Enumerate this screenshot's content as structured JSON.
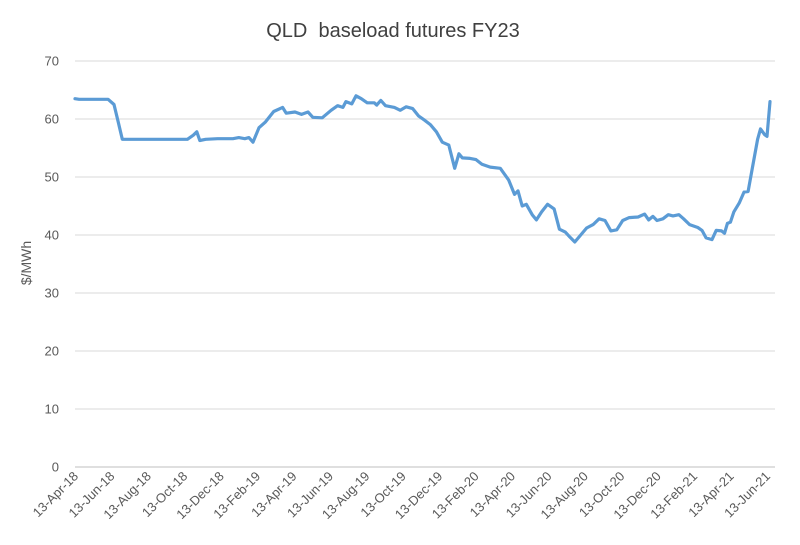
{
  "chart_data": {
    "type": "line",
    "title": "QLD  baseload futures FY23",
    "xlabel": "",
    "ylabel": "$/MWh",
    "ylim": [
      0,
      70
    ],
    "yticks": [
      0,
      10,
      20,
      30,
      40,
      50,
      60,
      70
    ],
    "grid": true,
    "legend": "none",
    "line_color": "#5b9bd5",
    "x_tick_labels": [
      "13-Apr-18",
      "13-Jun-18",
      "13-Aug-18",
      "13-Oct-18",
      "13-Dec-18",
      "13-Feb-19",
      "13-Apr-19",
      "13-Jun-19",
      "13-Aug-19",
      "13-Oct-19",
      "13-Dec-19",
      "13-Feb-20",
      "13-Apr-20",
      "13-Jun-20",
      "13-Aug-20",
      "13-Oct-20",
      "13-Dec-20",
      "13-Feb-21",
      "13-Apr-21",
      "13-Jun-21"
    ],
    "series": [
      {
        "values": [
          {
            "x": "2018-04-13",
            "y": 63.5
          },
          {
            "x": "2018-04-20",
            "y": 63.4
          },
          {
            "x": "2018-05-10",
            "y": 63.4
          },
          {
            "x": "2018-06-08",
            "y": 63.4
          },
          {
            "x": "2018-06-18",
            "y": 62.5
          },
          {
            "x": "2018-06-25",
            "y": 59.5
          },
          {
            "x": "2018-07-02",
            "y": 56.5
          },
          {
            "x": "2018-07-20",
            "y": 56.5
          },
          {
            "x": "2018-08-20",
            "y": 56.5
          },
          {
            "x": "2018-09-20",
            "y": 56.5
          },
          {
            "x": "2018-10-20",
            "y": 56.5
          },
          {
            "x": "2018-10-30",
            "y": 57.2
          },
          {
            "x": "2018-11-05",
            "y": 57.8
          },
          {
            "x": "2018-11-10",
            "y": 56.3
          },
          {
            "x": "2018-11-20",
            "y": 56.5
          },
          {
            "x": "2018-12-10",
            "y": 56.6
          },
          {
            "x": "2019-01-05",
            "y": 56.6
          },
          {
            "x": "2019-01-15",
            "y": 56.8
          },
          {
            "x": "2019-01-25",
            "y": 56.6
          },
          {
            "x": "2019-02-01",
            "y": 56.8
          },
          {
            "x": "2019-02-08",
            "y": 56.0
          },
          {
            "x": "2019-02-18",
            "y": 58.5
          },
          {
            "x": "2019-03-01",
            "y": 59.5
          },
          {
            "x": "2019-03-15",
            "y": 61.3
          },
          {
            "x": "2019-03-30",
            "y": 62.0
          },
          {
            "x": "2019-04-05",
            "y": 61.0
          },
          {
            "x": "2019-04-20",
            "y": 61.2
          },
          {
            "x": "2019-05-01",
            "y": 60.8
          },
          {
            "x": "2019-05-12",
            "y": 61.2
          },
          {
            "x": "2019-05-20",
            "y": 60.3
          },
          {
            "x": "2019-06-05",
            "y": 60.2
          },
          {
            "x": "2019-06-20",
            "y": 61.5
          },
          {
            "x": "2019-07-01",
            "y": 62.3
          },
          {
            "x": "2019-07-10",
            "y": 62.0
          },
          {
            "x": "2019-07-15",
            "y": 63.0
          },
          {
            "x": "2019-07-25",
            "y": 62.6
          },
          {
            "x": "2019-08-01",
            "y": 64.0
          },
          {
            "x": "2019-08-10",
            "y": 63.5
          },
          {
            "x": "2019-08-20",
            "y": 62.8
          },
          {
            "x": "2019-09-01",
            "y": 62.8
          },
          {
            "x": "2019-09-05",
            "y": 62.4
          },
          {
            "x": "2019-09-12",
            "y": 63.2
          },
          {
            "x": "2019-09-20",
            "y": 62.3
          },
          {
            "x": "2019-10-05",
            "y": 62.0
          },
          {
            "x": "2019-10-15",
            "y": 61.5
          },
          {
            "x": "2019-10-25",
            "y": 62.1
          },
          {
            "x": "2019-11-05",
            "y": 61.8
          },
          {
            "x": "2019-11-15",
            "y": 60.5
          },
          {
            "x": "2019-11-25",
            "y": 59.8
          },
          {
            "x": "2019-12-05",
            "y": 59.0
          },
          {
            "x": "2019-12-15",
            "y": 57.8
          },
          {
            "x": "2019-12-25",
            "y": 56.0
          },
          {
            "x": "2020-01-05",
            "y": 55.5
          },
          {
            "x": "2020-01-15",
            "y": 51.5
          },
          {
            "x": "2020-01-22",
            "y": 54.0
          },
          {
            "x": "2020-01-28",
            "y": 53.3
          },
          {
            "x": "2020-02-10",
            "y": 53.2
          },
          {
            "x": "2020-02-20",
            "y": 53.0
          },
          {
            "x": "2020-03-01",
            "y": 52.2
          },
          {
            "x": "2020-03-15",
            "y": 51.7
          },
          {
            "x": "2020-04-01",
            "y": 51.5
          },
          {
            "x": "2020-04-15",
            "y": 49.5
          },
          {
            "x": "2020-04-25",
            "y": 47.0
          },
          {
            "x": "2020-05-01",
            "y": 47.6
          },
          {
            "x": "2020-05-08",
            "y": 45.0
          },
          {
            "x": "2020-05-15",
            "y": 45.3
          },
          {
            "x": "2020-05-25",
            "y": 43.5
          },
          {
            "x": "2020-06-01",
            "y": 42.6
          },
          {
            "x": "2020-06-10",
            "y": 44.0
          },
          {
            "x": "2020-06-20",
            "y": 45.3
          },
          {
            "x": "2020-07-01",
            "y": 44.5
          },
          {
            "x": "2020-07-10",
            "y": 41.0
          },
          {
            "x": "2020-07-20",
            "y": 40.5
          },
          {
            "x": "2020-07-28",
            "y": 39.6
          },
          {
            "x": "2020-08-05",
            "y": 38.8
          },
          {
            "x": "2020-08-15",
            "y": 40.0
          },
          {
            "x": "2020-08-25",
            "y": 41.2
          },
          {
            "x": "2020-09-05",
            "y": 41.8
          },
          {
            "x": "2020-09-15",
            "y": 42.8
          },
          {
            "x": "2020-09-25",
            "y": 42.5
          },
          {
            "x": "2020-10-05",
            "y": 40.7
          },
          {
            "x": "2020-10-15",
            "y": 40.9
          },
          {
            "x": "2020-10-25",
            "y": 42.5
          },
          {
            "x": "2020-11-05",
            "y": 43.0
          },
          {
            "x": "2020-11-20",
            "y": 43.1
          },
          {
            "x": "2020-12-01",
            "y": 43.6
          },
          {
            "x": "2020-12-08",
            "y": 42.6
          },
          {
            "x": "2020-12-15",
            "y": 43.2
          },
          {
            "x": "2020-12-22",
            "y": 42.5
          },
          {
            "x": "2021-01-01",
            "y": 42.8
          },
          {
            "x": "2021-01-10",
            "y": 43.5
          },
          {
            "x": "2021-01-18",
            "y": 43.3
          },
          {
            "x": "2021-01-28",
            "y": 43.5
          },
          {
            "x": "2021-02-05",
            "y": 42.8
          },
          {
            "x": "2021-02-15",
            "y": 41.8
          },
          {
            "x": "2021-03-01",
            "y": 41.3
          },
          {
            "x": "2021-03-08",
            "y": 40.8
          },
          {
            "x": "2021-03-15",
            "y": 39.5
          },
          {
            "x": "2021-03-25",
            "y": 39.2
          },
          {
            "x": "2021-04-01",
            "y": 40.8
          },
          {
            "x": "2021-04-10",
            "y": 40.7
          },
          {
            "x": "2021-04-15",
            "y": 40.3
          },
          {
            "x": "2021-04-20",
            "y": 42.0
          },
          {
            "x": "2021-04-25",
            "y": 42.2
          },
          {
            "x": "2021-05-01",
            "y": 44.0
          },
          {
            "x": "2021-05-10",
            "y": 45.5
          },
          {
            "x": "2021-05-18",
            "y": 47.4
          },
          {
            "x": "2021-05-25",
            "y": 47.5
          },
          {
            "x": "2021-06-01",
            "y": 51.5
          },
          {
            "x": "2021-06-10",
            "y": 56.5
          },
          {
            "x": "2021-06-15",
            "y": 58.3
          },
          {
            "x": "2021-06-22",
            "y": 57.3
          },
          {
            "x": "2021-06-26",
            "y": 57.0
          },
          {
            "x": "2021-07-01",
            "y": 63.0
          }
        ]
      }
    ]
  }
}
